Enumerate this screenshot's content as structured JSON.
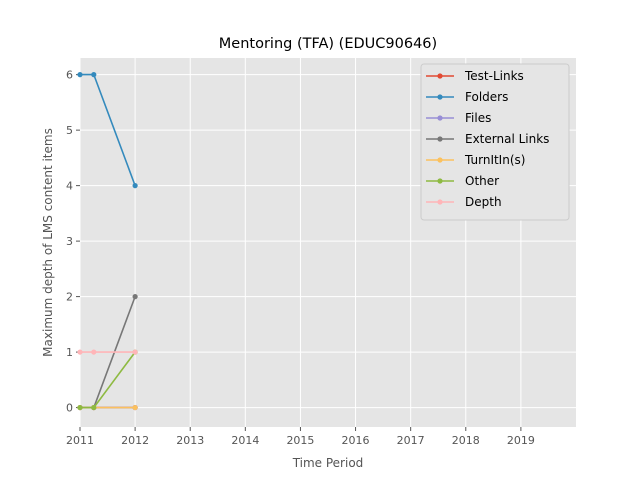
{
  "chart_data": {
    "type": "line",
    "title": "Mentoring (TFA) (EDUC90646)",
    "xlabel": "Time Period",
    "ylabel": "Maximum depth of LMS content items",
    "xlim": [
      2011,
      2020
    ],
    "ylim": [
      -0.35,
      6.3
    ],
    "x_ticks": [
      2011,
      2012,
      2013,
      2014,
      2015,
      2016,
      2017,
      2018,
      2019
    ],
    "x_tick_labels": [
      "2011",
      "2012",
      "2013",
      "2014",
      "2015",
      "2016",
      "2017",
      "2018",
      "2019"
    ],
    "y_ticks": [
      0,
      1,
      2,
      3,
      4,
      5,
      6
    ],
    "y_tick_labels": [
      "0",
      "1",
      "2",
      "3",
      "4",
      "5",
      "6"
    ],
    "grid": true,
    "background": "#e5e5e5",
    "legend_position": "top-right",
    "series": [
      {
        "name": "Test-Links",
        "color": "#e24a33",
        "x": [
          2011.0,
          2011.25,
          2012.0
        ],
        "y": [
          0,
          0,
          0
        ]
      },
      {
        "name": "Folders",
        "color": "#348abd",
        "x": [
          2011.0,
          2011.25,
          2012.0
        ],
        "y": [
          6,
          6,
          4
        ]
      },
      {
        "name": "Files",
        "color": "#988ed5",
        "x": [
          2011.0,
          2011.25,
          2012.0
        ],
        "y": [
          0,
          0,
          0
        ]
      },
      {
        "name": "External Links",
        "color": "#777777",
        "x": [
          2011.0,
          2011.25,
          2012.0
        ],
        "y": [
          0,
          0,
          2
        ]
      },
      {
        "name": "TurnItIn(s)",
        "color": "#fbc15e",
        "x": [
          2011.0,
          2011.25,
          2012.0
        ],
        "y": [
          0,
          0,
          0
        ]
      },
      {
        "name": "Other",
        "color": "#8eba42",
        "x": [
          2011.0,
          2011.25,
          2012.0
        ],
        "y": [
          0,
          0,
          1
        ]
      },
      {
        "name": "Depth",
        "color": "#ffb5b8",
        "x": [
          2011.0,
          2011.25,
          2012.0
        ],
        "y": [
          1,
          1,
          1
        ]
      }
    ]
  }
}
